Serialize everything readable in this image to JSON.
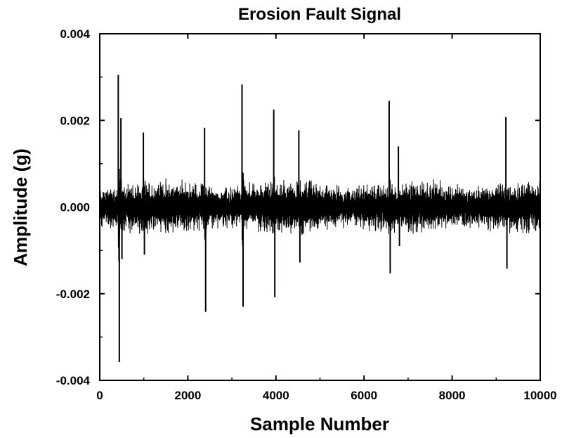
{
  "chart_data": {
    "type": "line",
    "title": "Erosion Fault Signal",
    "xlabel": "Sample Number",
    "ylabel": "Amplitude (g)",
    "xlim": [
      0,
      10000
    ],
    "ylim": [
      -0.004,
      0.004
    ],
    "xticks": [
      0,
      2000,
      4000,
      6000,
      8000,
      10000
    ],
    "xtick_labels": [
      "0",
      "2000",
      "4000",
      "6000",
      "8000",
      "10000"
    ],
    "yticks": [
      -0.004,
      -0.002,
      0.0,
      0.002,
      0.004
    ],
    "ytick_labels": [
      "-0.004",
      "-0.002",
      "0.000",
      "0.002",
      "0.004"
    ],
    "grid": false,
    "legend": false,
    "line_color": "#000000",
    "noise_band_amplitude": 0.0005,
    "series": [
      {
        "spikes": [
          {
            "x": 420,
            "max": 0.00305,
            "min": -0.00358
          },
          {
            "x": 480,
            "max": 0.00205,
            "min": -0.0012
          },
          {
            "x": 990,
            "max": 0.00172,
            "min": -0.0011
          },
          {
            "x": 2380,
            "max": 0.00183,
            "min": -0.00242
          },
          {
            "x": 3230,
            "max": 0.00283,
            "min": -0.0023
          },
          {
            "x": 3950,
            "max": 0.00225,
            "min": -0.00208
          },
          {
            "x": 4520,
            "max": 0.00177,
            "min": -0.00128
          },
          {
            "x": 6570,
            "max": 0.00245,
            "min": -0.00153
          },
          {
            "x": 6780,
            "max": 0.0014,
            "min": -0.0009
          },
          {
            "x": 9220,
            "max": 0.00208,
            "min": -0.00142
          }
        ]
      }
    ]
  }
}
